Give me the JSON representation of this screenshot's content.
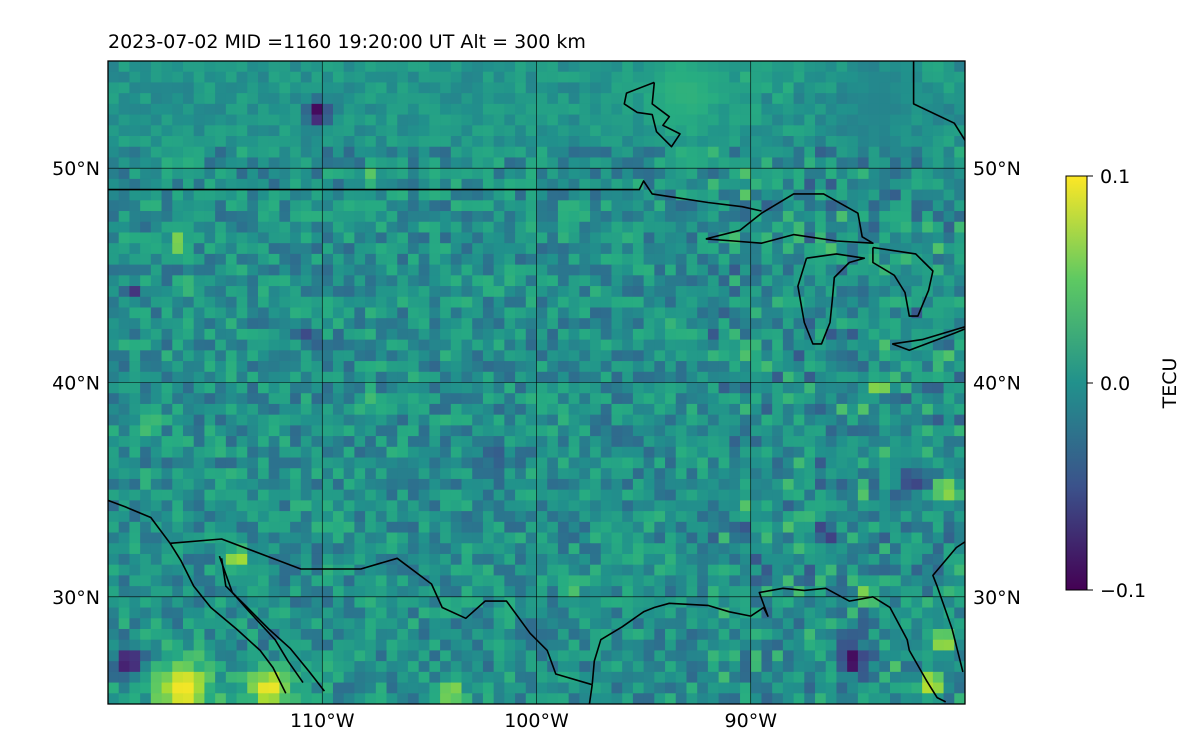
{
  "title": "2023-07-02  MID =1160    19:20:00  UT  Alt = 300 km",
  "colors": {
    "coast": "#000000",
    "grid": "#000000",
    "cmap": [
      "#440154",
      "#3b528b",
      "#21918c",
      "#5ec962",
      "#fde725"
    ],
    "field_bg": "#2a8a87"
  },
  "chart_data": {
    "type": "heatmap",
    "projection": "plate-carree",
    "title": "2023-07-02  MID =1160    19:20:00  UT  Alt = 300 km",
    "xlim": [
      -120,
      -80
    ],
    "ylim": [
      25,
      55
    ],
    "grid": true,
    "x_ticks": [
      {
        "value": -110,
        "label": "110°W"
      },
      {
        "value": -100,
        "label": "100°W"
      },
      {
        "value": -90,
        "label": "90°W"
      }
    ],
    "y_ticks": [
      {
        "value": 30,
        "label": "30°N"
      },
      {
        "value": 40,
        "label": "40°N"
      },
      {
        "value": 50,
        "label": "50°N"
      }
    ],
    "colorbar": {
      "label": "TECU",
      "vmin": -0.1,
      "vmax": 0.1,
      "ticks": [
        {
          "value": 0.1,
          "label": "0.1"
        },
        {
          "value": 0.0,
          "label": "0.0"
        },
        {
          "value": -0.1,
          "label": "−0.1"
        }
      ],
      "colormap": "viridis"
    },
    "field": {
      "nx": 80,
      "ny": 60,
      "base_value": 0.0,
      "noise_amplitude": 0.03,
      "features": [
        {
          "lon": -110.2,
          "lat": 52.6,
          "value": -0.1,
          "radius": 0.6
        },
        {
          "lon": -116.8,
          "lat": 46.5,
          "value": 0.09,
          "radius": 0.4
        },
        {
          "lon": -118.9,
          "lat": 44.2,
          "value": -0.08,
          "radius": 0.4
        },
        {
          "lon": -116.5,
          "lat": 44.4,
          "value": 0.08,
          "radius": 0.3
        },
        {
          "lon": -110.6,
          "lat": 42.1,
          "value": -0.07,
          "radius": 0.4
        },
        {
          "lon": -107.8,
          "lat": 49.7,
          "value": 0.05,
          "radius": 0.3
        },
        {
          "lon": -114.0,
          "lat": 31.8,
          "value": 0.09,
          "radius": 0.5
        },
        {
          "lon": -119.0,
          "lat": 27.0,
          "value": -0.1,
          "radius": 0.7
        },
        {
          "lon": -116.5,
          "lat": 25.7,
          "value": 0.1,
          "radius": 1.4
        },
        {
          "lon": -112.5,
          "lat": 25.7,
          "value": 0.1,
          "radius": 1.0
        },
        {
          "lon": -104.0,
          "lat": 25.5,
          "value": 0.08,
          "radius": 0.6
        },
        {
          "lon": -85.2,
          "lat": 27.0,
          "value": -0.1,
          "radius": 0.7
        },
        {
          "lon": -81.0,
          "lat": 28.0,
          "value": 0.08,
          "radius": 0.6
        },
        {
          "lon": -81.6,
          "lat": 25.9,
          "value": 0.09,
          "radius": 0.6
        },
        {
          "lon": -82.5,
          "lat": 35.5,
          "value": -0.08,
          "radius": 0.5
        },
        {
          "lon": -80.8,
          "lat": 35.0,
          "value": 0.08,
          "radius": 0.5
        },
        {
          "lon": -84.0,
          "lat": 39.8,
          "value": 0.09,
          "radius": 0.4
        },
        {
          "lon": -90.0,
          "lat": 41.5,
          "value": 0.07,
          "radius": 0.4
        },
        {
          "lon": -98.5,
          "lat": 30.5,
          "value": 0.07,
          "radius": 0.4
        },
        {
          "lon": -84.6,
          "lat": 30.2,
          "value": 0.07,
          "radius": 0.4
        },
        {
          "lon": -93.5,
          "lat": 43.0,
          "value": 0.06,
          "radius": 0.3
        },
        {
          "lon": -105.0,
          "lat": 41.0,
          "value": -0.06,
          "radius": 0.3
        },
        {
          "lon": -84.0,
          "lat": 45.0,
          "value": 0.06,
          "radius": 0.4
        },
        {
          "lon": -86.5,
          "lat": 33.0,
          "value": -0.07,
          "radius": 0.5
        },
        {
          "lon": -90.5,
          "lat": 33.0,
          "value": -0.06,
          "radius": 0.4
        },
        {
          "lon": -108.0,
          "lat": 39.0,
          "value": 0.05,
          "radius": 0.4
        },
        {
          "lon": -118.0,
          "lat": 38.0,
          "value": 0.05,
          "radius": 0.4
        },
        {
          "lon": -102.0,
          "lat": 36.5,
          "value": -0.05,
          "radius": 0.5
        },
        {
          "lon": -96.0,
          "lat": 37.5,
          "value": -0.05,
          "radius": 0.5
        },
        {
          "lon": -93.0,
          "lat": 53.5,
          "value": 0.03,
          "radius": 2.0
        },
        {
          "lon": -84.0,
          "lat": 53.0,
          "value": -0.01,
          "radius": 2.0
        }
      ]
    },
    "coastlines": [
      {
        "name": "us-canada-border",
        "points": [
          [
            -120,
            49.0
          ],
          [
            -115,
            49.0
          ],
          [
            -105,
            49.0
          ],
          [
            -95.2,
            49.0
          ],
          [
            -95.0,
            49.4
          ],
          [
            -94.6,
            48.8
          ],
          [
            -92.0,
            48.4
          ],
          [
            -90.4,
            48.2
          ],
          [
            -89.5,
            48.0
          ]
        ]
      },
      {
        "name": "lake-superior",
        "points": [
          [
            -92.1,
            46.7
          ],
          [
            -90.5,
            47.1
          ],
          [
            -89.5,
            47.9
          ],
          [
            -88.0,
            48.8
          ],
          [
            -86.6,
            48.8
          ],
          [
            -85.0,
            47.9
          ],
          [
            -84.8,
            46.8
          ],
          [
            -84.3,
            46.5
          ],
          [
            -86.0,
            46.6
          ],
          [
            -88.0,
            46.9
          ],
          [
            -89.5,
            46.5
          ],
          [
            -90.8,
            46.6
          ],
          [
            -92.1,
            46.7
          ]
        ]
      },
      {
        "name": "lake-michigan",
        "points": [
          [
            -87.4,
            45.8
          ],
          [
            -87.8,
            44.5
          ],
          [
            -87.5,
            42.8
          ],
          [
            -87.1,
            41.8
          ],
          [
            -86.7,
            41.8
          ],
          [
            -86.3,
            42.8
          ],
          [
            -86.2,
            43.8
          ],
          [
            -86.1,
            44.9
          ],
          [
            -85.4,
            45.6
          ],
          [
            -84.7,
            45.8
          ],
          [
            -86.0,
            46.0
          ],
          [
            -87.4,
            45.8
          ]
        ]
      },
      {
        "name": "lake-huron",
        "points": [
          [
            -84.3,
            46.3
          ],
          [
            -82.3,
            46.0
          ],
          [
            -81.5,
            45.2
          ],
          [
            -81.7,
            44.3
          ],
          [
            -82.2,
            43.1
          ],
          [
            -82.6,
            43.1
          ],
          [
            -82.8,
            44.2
          ],
          [
            -83.3,
            45.0
          ],
          [
            -84.3,
            45.6
          ],
          [
            -84.3,
            46.3
          ]
        ]
      },
      {
        "name": "lake-erie",
        "points": [
          [
            -83.4,
            41.8
          ],
          [
            -82.0,
            42.0
          ],
          [
            -80.0,
            42.6
          ],
          [
            -79.0,
            42.9
          ],
          [
            -80.5,
            42.3
          ],
          [
            -82.6,
            41.5
          ],
          [
            -83.4,
            41.8
          ]
        ]
      },
      {
        "name": "us-mexico-border",
        "points": [
          [
            -117.1,
            32.5
          ],
          [
            -114.7,
            32.7
          ],
          [
            -111.0,
            31.3
          ],
          [
            -108.2,
            31.3
          ],
          [
            -106.5,
            31.8
          ],
          [
            -104.9,
            30.6
          ],
          [
            -104.4,
            29.5
          ],
          [
            -103.3,
            29.0
          ],
          [
            -102.4,
            29.8
          ],
          [
            -101.4,
            29.8
          ],
          [
            -100.3,
            28.3
          ],
          [
            -99.5,
            27.5
          ],
          [
            -99.1,
            26.4
          ],
          [
            -97.4,
            25.9
          ]
        ]
      },
      {
        "name": "gulf-coast-mexico",
        "points": [
          [
            -97.4,
            25.9
          ],
          [
            -97.6,
            24.5
          ]
        ]
      },
      {
        "name": "gulf-coast-us",
        "points": [
          [
            -97.4,
            25.9
          ],
          [
            -97.3,
            27.0
          ],
          [
            -97.0,
            28.0
          ],
          [
            -96.0,
            28.6
          ],
          [
            -95.0,
            29.3
          ],
          [
            -94.5,
            29.5
          ],
          [
            -93.8,
            29.7
          ],
          [
            -92.0,
            29.6
          ],
          [
            -91.0,
            29.3
          ],
          [
            -90.0,
            29.1
          ],
          [
            -89.4,
            29.5
          ],
          [
            -89.2,
            29.1
          ],
          [
            -89.6,
            30.2
          ],
          [
            -88.5,
            30.4
          ],
          [
            -87.5,
            30.3
          ],
          [
            -86.5,
            30.4
          ],
          [
            -85.4,
            29.8
          ],
          [
            -84.3,
            30.0
          ],
          [
            -83.5,
            29.5
          ],
          [
            -82.7,
            28.0
          ],
          [
            -82.6,
            27.5
          ],
          [
            -81.8,
            26.1
          ],
          [
            -81.3,
            25.3
          ],
          [
            -80.9,
            25.1
          ]
        ]
      },
      {
        "name": "atlantic-florida",
        "points": [
          [
            -80.1,
            26.5
          ],
          [
            -80.6,
            28.5
          ],
          [
            -81.3,
            30.5
          ],
          [
            -81.5,
            31.0
          ],
          [
            -80.4,
            32.3
          ],
          [
            -79.8,
            32.7
          ],
          [
            -79.6,
            33.0
          ]
        ]
      },
      {
        "name": "pacific-coast",
        "points": [
          [
            -120.0,
            34.5
          ],
          [
            -119.2,
            34.2
          ],
          [
            -118.0,
            33.7
          ],
          [
            -117.1,
            32.5
          ],
          [
            -116.6,
            31.7
          ],
          [
            -116.0,
            30.5
          ],
          [
            -115.2,
            29.5
          ],
          [
            -114.0,
            28.5
          ],
          [
            -112.9,
            27.5
          ],
          [
            -112.3,
            26.7
          ],
          [
            -111.7,
            25.5
          ]
        ]
      },
      {
        "name": "gulf-of-california-east",
        "points": [
          [
            -114.7,
            31.8
          ],
          [
            -114.5,
            30.5
          ],
          [
            -113.5,
            29.5
          ],
          [
            -112.5,
            28.5
          ],
          [
            -111.5,
            27.6
          ],
          [
            -110.6,
            26.5
          ],
          [
            -109.9,
            25.6
          ]
        ]
      },
      {
        "name": "gulf-of-california-west",
        "points": [
          [
            -114.8,
            31.9
          ],
          [
            -114.2,
            30.2
          ],
          [
            -113.4,
            29.3
          ],
          [
            -112.2,
            28.0
          ],
          [
            -111.6,
            27.0
          ],
          [
            -110.9,
            26.0
          ]
        ]
      },
      {
        "name": "hudson-bay",
        "points": [
          [
            -94.5,
            54.0
          ],
          [
            -95.8,
            53.5
          ],
          [
            -95.9,
            53.0
          ],
          [
            -95.3,
            52.6
          ],
          [
            -94.6,
            52.5
          ],
          [
            -94.4,
            51.7
          ],
          [
            -93.7,
            51.0
          ],
          [
            -93.3,
            51.6
          ],
          [
            -94.1,
            52.0
          ],
          [
            -93.8,
            52.4
          ],
          [
            -94.6,
            53.0
          ],
          [
            -94.5,
            54.0
          ]
        ]
      },
      {
        "name": "james-bay",
        "points": [
          [
            -82.4,
            55.0
          ],
          [
            -82.4,
            53.0
          ],
          [
            -80.5,
            52.1
          ],
          [
            -80.0,
            51.3
          ]
        ]
      }
    ]
  }
}
